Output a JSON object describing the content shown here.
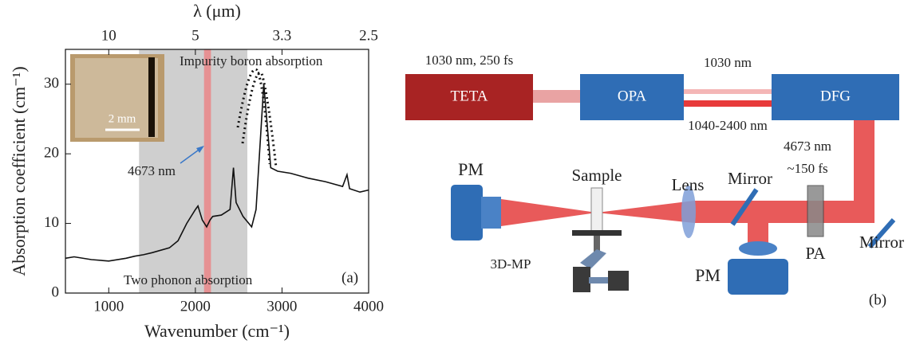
{
  "chart_data": {
    "type": "line",
    "x_label": "Wavenumber (cm⁻¹)",
    "y_label": "Absorption coefficient (cm⁻¹)",
    "x2_label": "λ (μm)",
    "xlim": [
      500,
      4000
    ],
    "ylim": [
      0,
      35
    ],
    "xticks": [
      1000,
      2000,
      3000,
      4000
    ],
    "yticks": [
      0,
      10,
      20,
      30
    ],
    "x2ticks": [
      {
        "value": 1000,
        "label": "10"
      },
      {
        "value": 2000,
        "label": "5"
      },
      {
        "value": 3000,
        "label": "3.3"
      },
      {
        "value": 4000,
        "label": "2.5"
      }
    ],
    "bands": [
      {
        "xlim": [
          1350,
          2600
        ],
        "color": "#cfcfcf"
      },
      {
        "xlim": [
          2100,
          2180
        ],
        "color": "#e88a8c"
      }
    ],
    "series": [
      {
        "color": "#111111",
        "x": [
          500,
          600,
          800,
          1000,
          1200,
          1300,
          1400,
          1500,
          1700,
          1800,
          1900,
          2000,
          2030,
          2080,
          2130,
          2170,
          2200,
          2300,
          2400,
          2440,
          2470,
          2550,
          2650,
          2700,
          2750,
          2790,
          2830,
          2870,
          2950,
          3100,
          3300,
          3500,
          3700,
          3750,
          3780,
          3900,
          4000
        ],
        "values": [
          5,
          5.2,
          4.8,
          4.6,
          5,
          5.3,
          5.5,
          5.8,
          6.5,
          7.5,
          10,
          12,
          12.5,
          10.5,
          9.5,
          10.5,
          11,
          11.2,
          12,
          18,
          13,
          11,
          9.5,
          12,
          22,
          30,
          24,
          18,
          17.5,
          17.2,
          16.5,
          16,
          15.3,
          17,
          15,
          14.5,
          14.8
        ]
      }
    ],
    "annotations": [
      "Impurity boron absorption",
      "Two phonon absorption",
      "4673 nm",
      "(a)"
    ],
    "inset_scale": "2 mm"
  },
  "diagram": {
    "boxes": [
      "TETA",
      "OPA",
      "DFG"
    ],
    "labels": [
      "1030 nm, 250 fs",
      "1030 nm",
      "1040-2400 nm",
      "4673 nm",
      "~150 fs",
      "PM",
      "Sample",
      "Lens",
      "Mirror",
      "Mirror",
      "PA",
      "PM",
      "3D-MP",
      "(b)"
    ]
  }
}
